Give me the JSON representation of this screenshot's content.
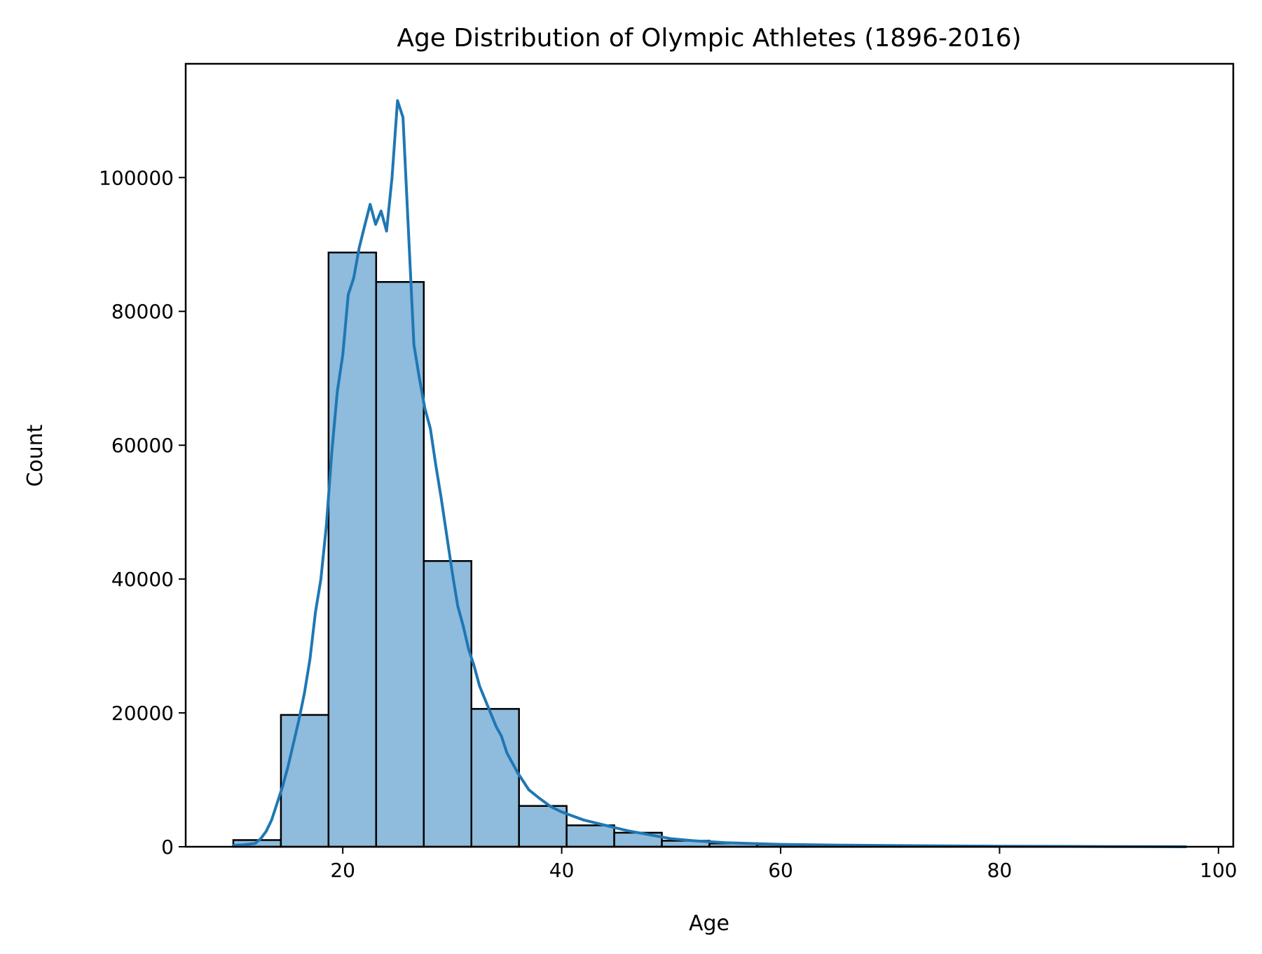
{
  "chart_data": {
    "type": "bar",
    "title": "Age Distribution of Olympic Athletes (1896-2016)",
    "xlabel": "Age",
    "ylabel": "Count",
    "xlim": [
      5.65,
      101.35
    ],
    "ylim": [
      0,
      117000
    ],
    "xticks": [
      20,
      40,
      60,
      80,
      100
    ],
    "yticks": [
      0,
      20000,
      40000,
      60000,
      80000,
      100000
    ],
    "grid": false,
    "legend": "none",
    "colors": {
      "bar_fill": "#8fbbdc",
      "bar_edge": "#000000",
      "kde_line": "#1f77b4"
    },
    "bins": [
      {
        "x0": 10.0,
        "x1": 14.35,
        "count": 1000
      },
      {
        "x0": 14.35,
        "x1": 18.7,
        "count": 19700
      },
      {
        "x0": 18.7,
        "x1": 23.05,
        "count": 88800
      },
      {
        "x0": 23.05,
        "x1": 27.4,
        "count": 84400
      },
      {
        "x0": 27.4,
        "x1": 31.75,
        "count": 42700
      },
      {
        "x0": 31.75,
        "x1": 36.1,
        "count": 20600
      },
      {
        "x0": 36.1,
        "x1": 40.45,
        "count": 6100
      },
      {
        "x0": 40.45,
        "x1": 44.8,
        "count": 3200
      },
      {
        "x0": 44.8,
        "x1": 49.15,
        "count": 2100
      },
      {
        "x0": 49.15,
        "x1": 53.5,
        "count": 900
      },
      {
        "x0": 53.5,
        "x1": 57.85,
        "count": 500
      },
      {
        "x0": 57.85,
        "x1": 62.2,
        "count": 350
      },
      {
        "x0": 62.2,
        "x1": 66.55,
        "count": 250
      },
      {
        "x0": 66.55,
        "x1": 70.9,
        "count": 180
      },
      {
        "x0": 70.9,
        "x1": 75.25,
        "count": 130
      },
      {
        "x0": 75.25,
        "x1": 79.6,
        "count": 80
      },
      {
        "x0": 79.6,
        "x1": 83.95,
        "count": 50
      },
      {
        "x0": 83.95,
        "x1": 88.3,
        "count": 30
      },
      {
        "x0": 88.3,
        "x1": 92.65,
        "count": 15
      },
      {
        "x0": 92.65,
        "x1": 97.0,
        "count": 10
      }
    ],
    "kde": {
      "x": [
        10,
        11,
        12,
        12.5,
        13,
        13.5,
        14,
        14.5,
        15,
        15.5,
        16,
        16.5,
        17,
        17.5,
        18,
        18.5,
        19,
        19.5,
        20,
        20.5,
        21,
        21.5,
        22,
        22.5,
        23,
        23.5,
        24,
        24.5,
        25,
        25.5,
        26,
        26.5,
        27,
        27.5,
        28,
        28.5,
        29,
        29.5,
        30,
        30.5,
        31,
        31.5,
        32,
        32.5,
        33,
        33.5,
        34,
        34.5,
        35,
        36,
        37,
        38,
        39,
        40,
        42,
        44,
        46,
        48,
        50,
        52,
        55,
        60,
        65,
        70,
        80,
        90,
        97
      ],
      "y": [
        200,
        300,
        500,
        1200,
        2300,
        4000,
        6500,
        9000,
        12000,
        15500,
        19000,
        23000,
        28000,
        35000,
        40000,
        48000,
        59000,
        68000,
        73500,
        82500,
        85000,
        89500,
        92800,
        96000,
        93000,
        95000,
        92000,
        100000,
        111500,
        109000,
        92000,
        75000,
        70000,
        65500,
        62500,
        57000,
        52000,
        46500,
        41000,
        36000,
        33000,
        29500,
        27000,
        24000,
        22000,
        20000,
        18000,
        16500,
        14000,
        11000,
        8500,
        7200,
        6000,
        5200,
        4000,
        3200,
        2400,
        1800,
        1200,
        900,
        600,
        350,
        250,
        180,
        80,
        30,
        0
      ]
    }
  }
}
